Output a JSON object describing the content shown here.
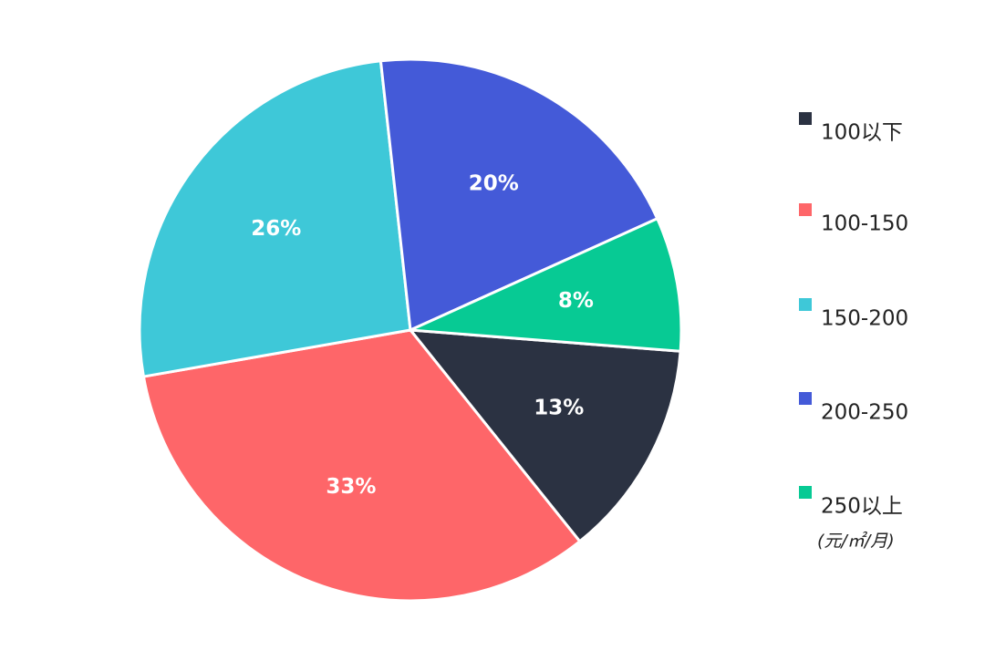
{
  "chart_data": {
    "type": "pie",
    "categories": [
      "100以下",
      "100-150",
      "150-200",
      "200-250",
      "250以上"
    ],
    "values": [
      13,
      33,
      26,
      20,
      8
    ],
    "value_labels": [
      "13%",
      "33%",
      "26%",
      "20%",
      "8%"
    ],
    "colors": [
      "#2b3242",
      "#fe6669",
      "#3ec8d8",
      "#445ad8",
      "#07ca94"
    ],
    "legend_note": "(元/㎡/月)",
    "legend": "right"
  }
}
